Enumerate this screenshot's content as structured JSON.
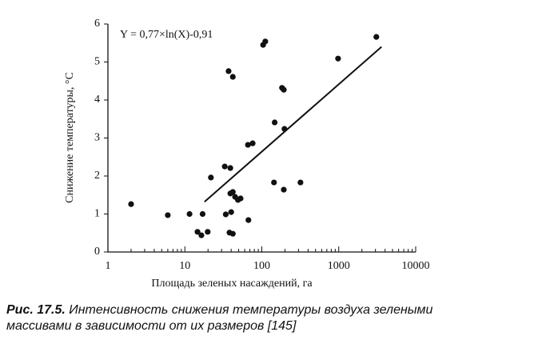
{
  "chart_data": {
    "type": "scatter",
    "annotation": "Y = 0,77×ln(X)-0,91",
    "xlabel": "Площадь зеленых насаждений, га",
    "ylabel": "Снижение температуры, °С",
    "x": [
      2,
      6,
      11.5,
      17,
      14.6,
      16.4,
      19.8,
      21.8,
      33,
      39,
      34,
      40,
      39,
      42,
      45,
      49,
      53,
      38,
      42,
      37,
      42,
      66,
      76,
      67,
      104,
      111,
      147,
      144,
      183,
      193,
      197,
      193,
      318,
      980,
      3080
    ],
    "values": [
      1.26,
      0.97,
      1.0,
      1.0,
      0.53,
      0.44,
      0.53,
      1.96,
      2.25,
      2.21,
      0.99,
      1.05,
      1.54,
      1.58,
      1.45,
      1.37,
      1.41,
      0.51,
      0.48,
      4.76,
      4.61,
      2.82,
      2.86,
      0.84,
      5.45,
      5.54,
      3.41,
      1.83,
      4.32,
      4.27,
      3.24,
      1.64,
      1.83,
      5.09,
      5.66
    ],
    "color": "#111111",
    "trend_line": {
      "x": [
        18,
        3600
      ],
      "y": [
        1.32,
        5.4
      ]
    },
    "xscale": "log",
    "xlim": [
      1,
      10000
    ],
    "xticks": [
      1,
      10,
      100,
      1000,
      10000
    ],
    "minor_ticks": true,
    "ylim": [
      0,
      6
    ],
    "yticks": [
      0,
      1,
      2,
      3,
      4,
      5,
      6
    ],
    "grid": false
  },
  "caption": {
    "label": "Рис. 17.5.",
    "lines": [
      "Интенсивность снижения температуры воздуха зелеными",
      "массивами в зависимости от их размеров [145]"
    ]
  }
}
